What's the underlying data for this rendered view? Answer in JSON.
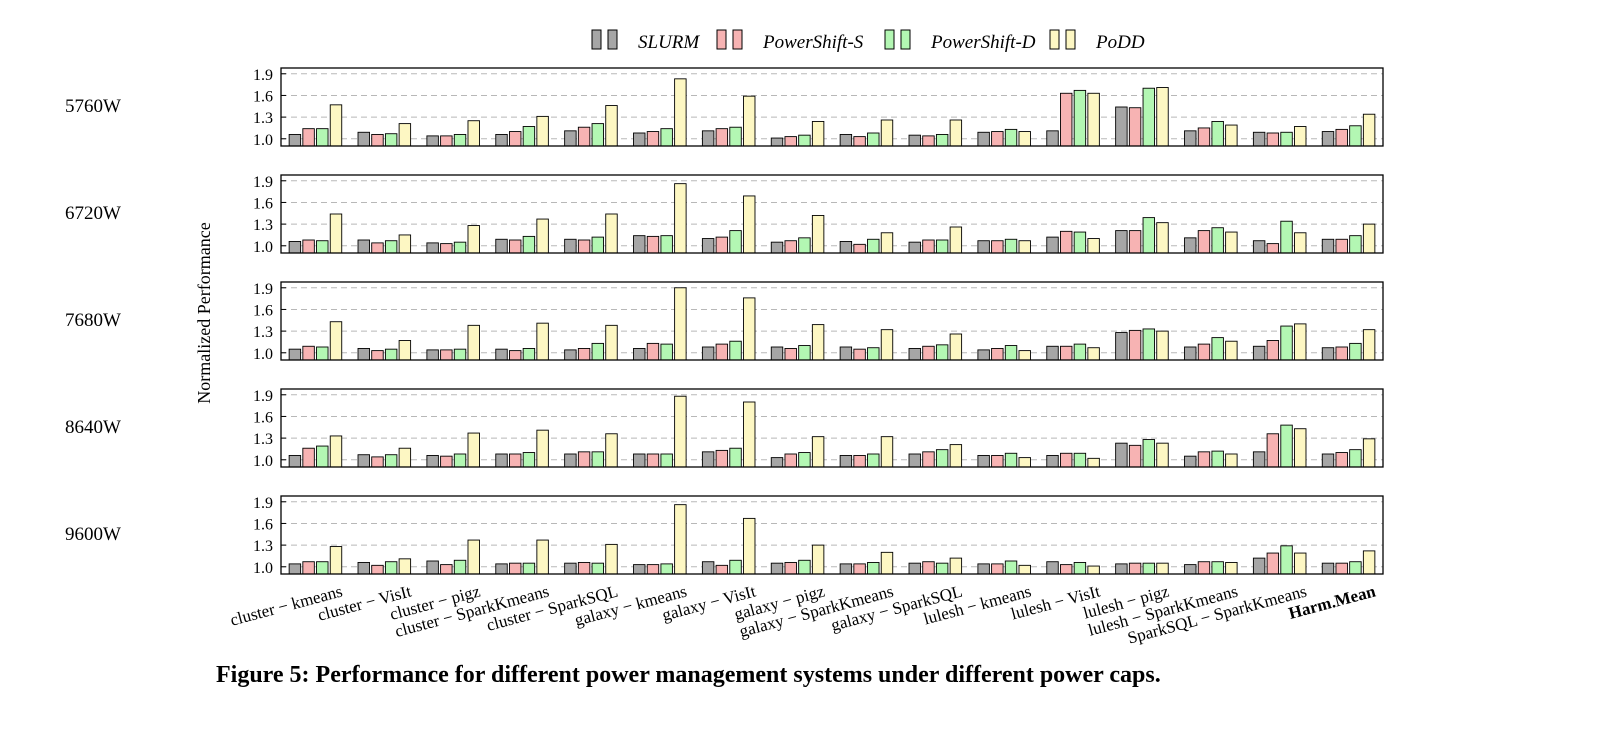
{
  "chart_data": {
    "type": "bar",
    "title": "",
    "caption": "Figure 5: Performance for different power management systems under different power caps.",
    "ylabel": "Normalized Performance",
    "xlabel": "",
    "ylim": [
      0.9,
      1.98
    ],
    "yticks": [
      "1.0",
      "1.3",
      "1.6",
      "1.9"
    ],
    "grid": true,
    "legend_position": "top-center",
    "series_names": [
      "SLURM",
      "PowerShift-S",
      "PowerShift-D",
      "PoDD"
    ],
    "series_colors": [
      "#a6a6a6",
      "#f7b3b3",
      "#b3f7b3",
      "#fdf7c3"
    ],
    "categories": [
      "cluster − kmeans",
      "cluster − VisIt",
      "cluster − pigz",
      "cluster − SparkKmeans",
      "cluster − SparkSQL",
      "galaxy − kmeans",
      "galaxy − VisIt",
      "galaxy − pigz",
      "galaxy − SparkKmeans",
      "galaxy − SparkSQL",
      "lulesh − kmeans",
      "lulesh − VisIt",
      "lulesh − pigz",
      "lulesh − SparkKmeans",
      "SparkSQL − SparkKmeans",
      "Harm.Mean"
    ],
    "panels": [
      {
        "label": "5760W",
        "values": [
          [
            1.06,
            1.14,
            1.14,
            1.47
          ],
          [
            1.09,
            1.06,
            1.07,
            1.21
          ],
          [
            1.04,
            1.04,
            1.06,
            1.25
          ],
          [
            1.06,
            1.1,
            1.17,
            1.31
          ],
          [
            1.11,
            1.16,
            1.21,
            1.46
          ],
          [
            1.08,
            1.1,
            1.14,
            1.83
          ],
          [
            1.11,
            1.14,
            1.16,
            1.59
          ],
          [
            1.01,
            1.03,
            1.05,
            1.24
          ],
          [
            1.06,
            1.03,
            1.08,
            1.26
          ],
          [
            1.05,
            1.04,
            1.06,
            1.26
          ],
          [
            1.09,
            1.1,
            1.13,
            1.1
          ],
          [
            1.11,
            1.63,
            1.67,
            1.63
          ],
          [
            1.44,
            1.43,
            1.7,
            1.71
          ],
          [
            1.11,
            1.15,
            1.24,
            1.19
          ],
          [
            1.09,
            1.08,
            1.09,
            1.17
          ],
          [
            1.1,
            1.13,
            1.18,
            1.34
          ]
        ]
      },
      {
        "label": "6720W",
        "values": [
          [
            1.06,
            1.08,
            1.07,
            1.44
          ],
          [
            1.08,
            1.04,
            1.07,
            1.15
          ],
          [
            1.04,
            1.03,
            1.05,
            1.28
          ],
          [
            1.09,
            1.08,
            1.13,
            1.37
          ],
          [
            1.09,
            1.08,
            1.12,
            1.44
          ],
          [
            1.14,
            1.13,
            1.14,
            1.86
          ],
          [
            1.1,
            1.12,
            1.21,
            1.69
          ],
          [
            1.05,
            1.07,
            1.11,
            1.42
          ],
          [
            1.06,
            1.02,
            1.09,
            1.18
          ],
          [
            1.05,
            1.08,
            1.08,
            1.26
          ],
          [
            1.07,
            1.07,
            1.09,
            1.07
          ],
          [
            1.12,
            1.2,
            1.19,
            1.1
          ],
          [
            1.21,
            1.21,
            1.39,
            1.32
          ],
          [
            1.11,
            1.21,
            1.25,
            1.19
          ],
          [
            1.07,
            1.03,
            1.34,
            1.18
          ],
          [
            1.09,
            1.09,
            1.14,
            1.3
          ]
        ]
      },
      {
        "label": "7680W",
        "values": [
          [
            1.05,
            1.09,
            1.08,
            1.43
          ],
          [
            1.06,
            1.03,
            1.05,
            1.17
          ],
          [
            1.04,
            1.04,
            1.05,
            1.38
          ],
          [
            1.05,
            1.03,
            1.06,
            1.41
          ],
          [
            1.04,
            1.06,
            1.13,
            1.38
          ],
          [
            1.06,
            1.13,
            1.12,
            1.9
          ],
          [
            1.08,
            1.12,
            1.16,
            1.76
          ],
          [
            1.08,
            1.06,
            1.1,
            1.39
          ],
          [
            1.08,
            1.05,
            1.07,
            1.32
          ],
          [
            1.06,
            1.09,
            1.11,
            1.26
          ],
          [
            1.04,
            1.06,
            1.1,
            1.03
          ],
          [
            1.09,
            1.09,
            1.12,
            1.07
          ],
          [
            1.28,
            1.31,
            1.33,
            1.3
          ],
          [
            1.08,
            1.12,
            1.21,
            1.16
          ],
          [
            1.09,
            1.17,
            1.37,
            1.4
          ],
          [
            1.07,
            1.08,
            1.13,
            1.32
          ]
        ]
      },
      {
        "label": "8640W",
        "values": [
          [
            1.06,
            1.16,
            1.19,
            1.33
          ],
          [
            1.07,
            1.04,
            1.07,
            1.16
          ],
          [
            1.06,
            1.05,
            1.08,
            1.37
          ],
          [
            1.08,
            1.08,
            1.1,
            1.41
          ],
          [
            1.08,
            1.11,
            1.11,
            1.36
          ],
          [
            1.08,
            1.08,
            1.08,
            1.88
          ],
          [
            1.11,
            1.13,
            1.16,
            1.8
          ],
          [
            1.03,
            1.08,
            1.1,
            1.32
          ],
          [
            1.06,
            1.06,
            1.08,
            1.32
          ],
          [
            1.08,
            1.11,
            1.14,
            1.21
          ],
          [
            1.06,
            1.06,
            1.09,
            1.03
          ],
          [
            1.06,
            1.09,
            1.09,
            1.02
          ],
          [
            1.23,
            1.2,
            1.28,
            1.23
          ],
          [
            1.05,
            1.11,
            1.12,
            1.08
          ],
          [
            1.11,
            1.36,
            1.48,
            1.43
          ],
          [
            1.08,
            1.1,
            1.14,
            1.29
          ]
        ]
      },
      {
        "label": "9600W",
        "values": [
          [
            1.04,
            1.07,
            1.07,
            1.28
          ],
          [
            1.06,
            1.02,
            1.07,
            1.11
          ],
          [
            1.08,
            1.03,
            1.09,
            1.37
          ],
          [
            1.04,
            1.05,
            1.05,
            1.37
          ],
          [
            1.05,
            1.06,
            1.05,
            1.31
          ],
          [
            1.03,
            1.03,
            1.04,
            1.86
          ],
          [
            1.07,
            1.02,
            1.09,
            1.67
          ],
          [
            1.05,
            1.06,
            1.09,
            1.3
          ],
          [
            1.04,
            1.04,
            1.06,
            1.2
          ],
          [
            1.05,
            1.07,
            1.05,
            1.12
          ],
          [
            1.04,
            1.04,
            1.08,
            1.02
          ],
          [
            1.07,
            1.03,
            1.06,
            1.01
          ],
          [
            1.04,
            1.05,
            1.05,
            1.05
          ],
          [
            1.03,
            1.07,
            1.07,
            1.06
          ],
          [
            1.12,
            1.19,
            1.29,
            1.19
          ],
          [
            1.05,
            1.05,
            1.07,
            1.22
          ]
        ]
      }
    ]
  }
}
